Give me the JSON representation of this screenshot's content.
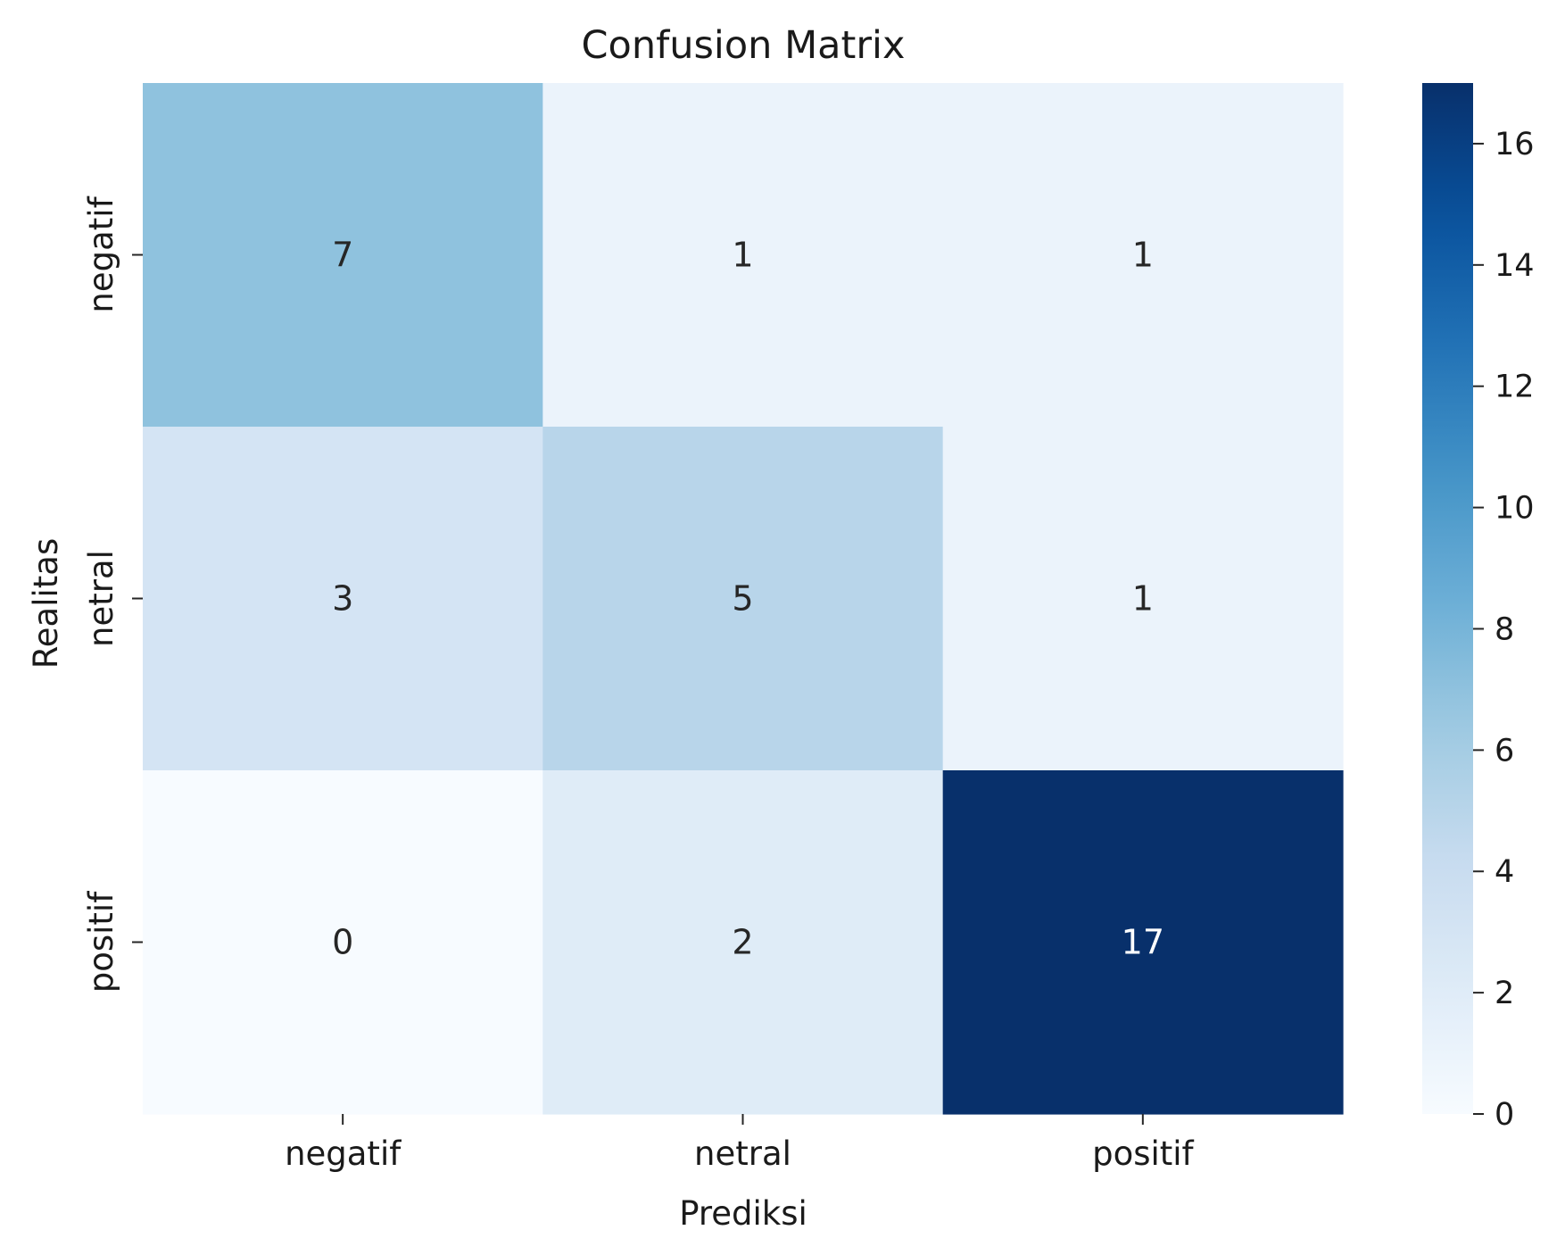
{
  "chart_data": {
    "type": "heatmap",
    "title": "Confusion Matrix",
    "xlabel": "Prediksi",
    "ylabel": "Realitas",
    "x_categories": [
      "negatif",
      "netral",
      "positif"
    ],
    "y_categories": [
      "negatif",
      "netral",
      "positif"
    ],
    "values": [
      [
        7,
        1,
        1
      ],
      [
        3,
        5,
        1
      ],
      [
        0,
        2,
        17
      ]
    ],
    "colormap": "Blues",
    "colorbar": {
      "range": [
        0,
        17
      ],
      "ticks": [
        0,
        2,
        4,
        6,
        8,
        10,
        12,
        14,
        16
      ]
    },
    "grid": false
  }
}
